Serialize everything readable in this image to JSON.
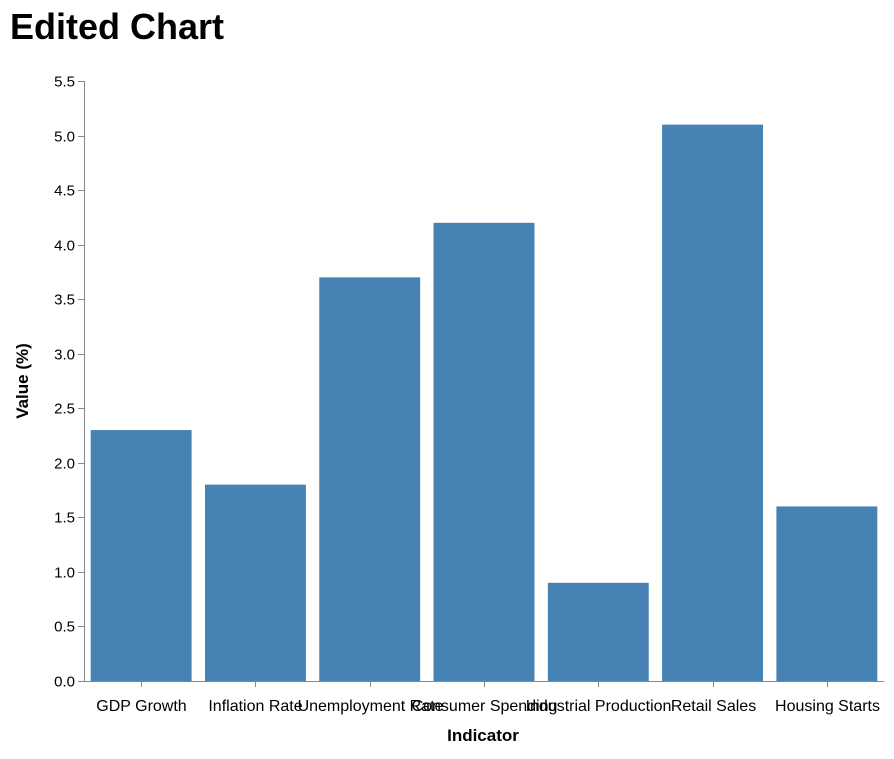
{
  "chart_data": {
    "type": "bar",
    "title": "Edited Chart",
    "xlabel": "Indicator",
    "ylabel": "Value (%)",
    "categories": [
      "GDP Growth",
      "Inflation Rate",
      "Unemployment Rate",
      "Consumer Spending",
      "Industrial Production",
      "Retail Sales",
      "Housing Starts"
    ],
    "values": [
      2.3,
      1.8,
      3.7,
      4.2,
      0.9,
      5.1,
      1.6
    ],
    "ylim": [
      0,
      5.5
    ],
    "yticks": [
      "0.0",
      "0.5",
      "1.0",
      "1.5",
      "2.0",
      "2.5",
      "3.0",
      "3.5",
      "4.0",
      "4.5",
      "5.0",
      "5.5"
    ],
    "grid": false,
    "bar_color": "#4682b4",
    "axis_color": "#888888"
  }
}
